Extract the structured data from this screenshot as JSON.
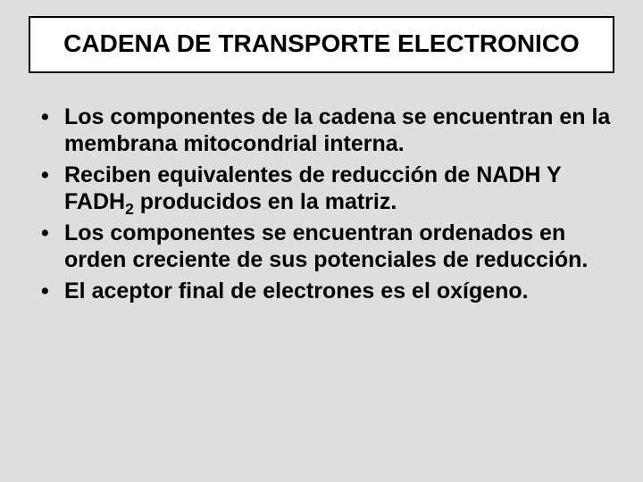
{
  "slide": {
    "title": "CADENA DE TRANSPORTE ELECTRONICO",
    "bullets": [
      {
        "text": "Los componentes de la cadena se encuentran en la membrana mitocondrial interna."
      },
      {
        "text_before": "Reciben equivalentes de reducción de NADH Y FADH",
        "sub": "2",
        "text_after": " producidos en la matriz."
      },
      {
        "text": "Los componentes se encuentran ordenados en orden creciente de sus potenciales de reducción."
      },
      {
        "text": "El aceptor final de electrones es el oxígeno."
      }
    ],
    "colors": {
      "background": "#dedede",
      "title_box_bg": "#ffffff",
      "title_box_border": "#000000",
      "text": "#000000"
    },
    "typography": {
      "title_fontsize": 28,
      "bullet_fontsize": 25,
      "font_family": "Arial",
      "font_weight": "bold"
    }
  }
}
